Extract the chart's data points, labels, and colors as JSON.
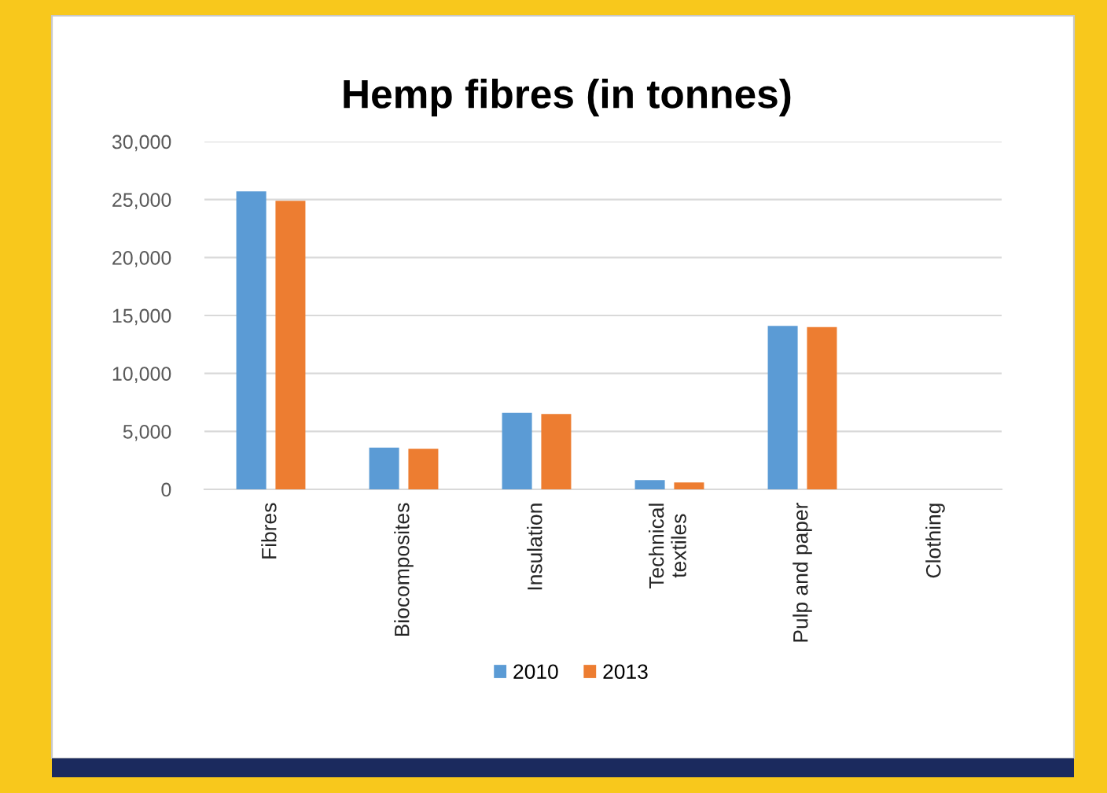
{
  "chart_data": {
    "type": "bar",
    "title": "Hemp fibres (in tonnes)",
    "categories": [
      "Fibres",
      "Biocomposites",
      "Insulation",
      "Technical\ntextiles",
      "Pulp and paper",
      "Clothing"
    ],
    "series": [
      {
        "name": "2010",
        "color": "#5b9bd5",
        "values": [
          25700,
          3600,
          6600,
          800,
          14100,
          null
        ]
      },
      {
        "name": "2013",
        "color": "#ed7d31",
        "values": [
          24900,
          3500,
          6500,
          600,
          14000,
          null
        ]
      }
    ],
    "ylim": [
      0,
      30000
    ],
    "yticks": [
      {
        "value": 0,
        "label": "0"
      },
      {
        "value": 5000,
        "label": "5,000"
      },
      {
        "value": 10000,
        "label": "10,000"
      },
      {
        "value": 15000,
        "label": "15,000"
      },
      {
        "value": 20000,
        "label": "20,000"
      },
      {
        "value": 25000,
        "label": "25,000"
      },
      {
        "value": 30000,
        "label": "30,000"
      }
    ],
    "grid": "y",
    "legend": "bottom"
  }
}
